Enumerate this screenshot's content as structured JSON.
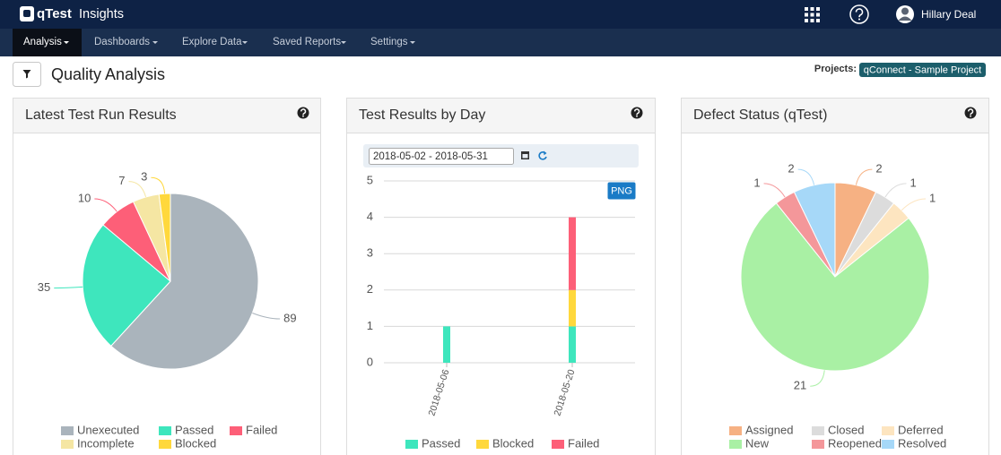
{
  "header": {
    "brand": "qTest",
    "product": "Insights",
    "user": "Hillary Deal"
  },
  "nav": [
    "Analysis",
    "Dashboards",
    "Explore Data",
    "Saved Reports",
    "Settings"
  ],
  "page": {
    "title": "Quality Analysis",
    "projects_label": "Projects:",
    "project": "qConnect - Sample Project"
  },
  "chart_data": [
    {
      "type": "pie",
      "title": "Latest Test Run Results",
      "categories": [
        "Unexecuted",
        "Passed",
        "Failed",
        "Incomplete",
        "Blocked"
      ],
      "values": [
        89,
        35,
        10,
        7,
        3
      ],
      "colors": [
        "#aab4bc",
        "#3ee6bd",
        "#fd5f78",
        "#f5e6a3",
        "#ffd83c"
      ]
    },
    {
      "type": "bar",
      "title": "Test Results by Day",
      "date_range": "2018-05-02 - 2018-05-31",
      "export_button": "PNG",
      "categories": [
        "2018-05-06",
        "2018-05-20"
      ],
      "series": [
        {
          "name": "Passed",
          "color": "#3ee6bd",
          "values": [
            1,
            1
          ]
        },
        {
          "name": "Blocked",
          "color": "#ffd83c",
          "values": [
            0,
            1
          ]
        },
        {
          "name": "Failed",
          "color": "#fd5f78",
          "values": [
            0,
            2
          ]
        }
      ],
      "stacked": true,
      "ylim": [
        0,
        5
      ],
      "yticks": [
        0,
        1,
        2,
        3,
        4,
        5
      ],
      "grid": true
    },
    {
      "type": "pie",
      "title": "Defect Status (qTest)",
      "categories": [
        "Assigned",
        "Closed",
        "Deferred",
        "New",
        "Reopened",
        "Resolved"
      ],
      "values": [
        2,
        1,
        1,
        21,
        1,
        2
      ],
      "colors": [
        "#f6b183",
        "#dcdcdc",
        "#fde5c0",
        "#a9f0a4",
        "#f4979a",
        "#a6d8f8"
      ]
    }
  ]
}
